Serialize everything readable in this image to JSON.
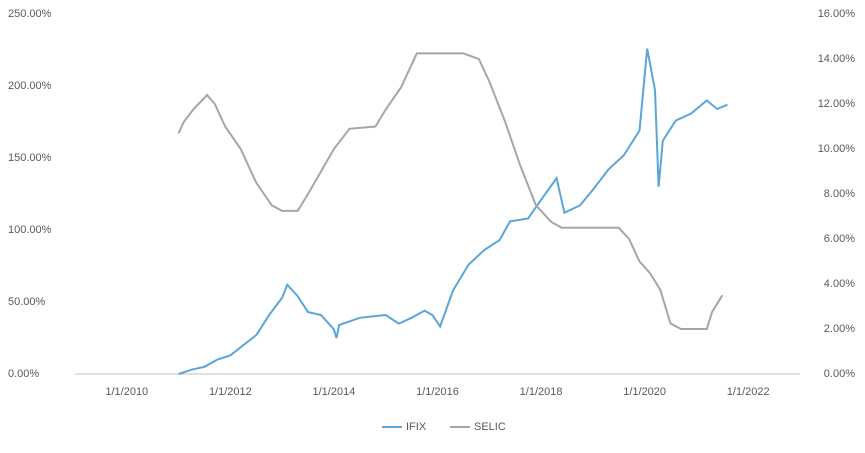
{
  "chart_data": {
    "type": "line",
    "xlim": [
      2009,
      2023
    ],
    "xticks": [
      {
        "value": 2010,
        "label": "1/1/2010"
      },
      {
        "value": 2012,
        "label": "1/1/2012"
      },
      {
        "value": 2014,
        "label": "1/1/2014"
      },
      {
        "value": 2016,
        "label": "1/1/2016"
      },
      {
        "value": 2018,
        "label": "1/1/2018"
      },
      {
        "value": 2020,
        "label": "1/1/2020"
      },
      {
        "value": 2022,
        "label": "1/1/2022"
      }
    ],
    "ylim": [
      0,
      250
    ],
    "yticks": [
      {
        "value": 0,
        "label": "0.00%"
      },
      {
        "value": 50,
        "label": "50.00%"
      },
      {
        "value": 100,
        "label": "100.00%"
      },
      {
        "value": 150,
        "label": "150.00%"
      },
      {
        "value": 200,
        "label": "200.00%"
      },
      {
        "value": 250,
        "label": "250.00%"
      }
    ],
    "y2lim": [
      0,
      16
    ],
    "y2ticks": [
      {
        "value": 0,
        "label": "0.00%"
      },
      {
        "value": 2,
        "label": "2.00%"
      },
      {
        "value": 4,
        "label": "4.00%"
      },
      {
        "value": 6,
        "label": "6.00%"
      },
      {
        "value": 8,
        "label": "8.00%"
      },
      {
        "value": 10,
        "label": "10.00%"
      },
      {
        "value": 12,
        "label": "12.00%"
      },
      {
        "value": 14,
        "label": "14.00%"
      },
      {
        "value": 16,
        "label": "16.00%"
      }
    ],
    "grid": false,
    "legend": "bottom",
    "series": [
      {
        "name": "IFIX",
        "color": "#5ba6d9",
        "x": [
          2011.0,
          2011.25,
          2011.5,
          2011.75,
          2012.0,
          2012.25,
          2012.5,
          2012.75,
          2013.0,
          2013.1,
          2013.3,
          2013.5,
          2013.75,
          2014.0,
          2014.05,
          2014.1,
          2014.5,
          2015.0,
          2015.25,
          2015.5,
          2015.75,
          2015.9,
          2016.05,
          2016.3,
          2016.6,
          2016.9,
          2017.2,
          2017.4,
          2017.75,
          2018.0,
          2018.3,
          2018.45,
          2018.75,
          2019.0,
          2019.3,
          2019.6,
          2019.9,
          2020.05,
          2020.2,
          2020.27,
          2020.35,
          2020.6,
          2020.9,
          2021.2,
          2021.4,
          2021.6
        ],
        "values": [
          0,
          3,
          5,
          10,
          13,
          20,
          27,
          41,
          53,
          62,
          54,
          43,
          41,
          31,
          25,
          34,
          39,
          41,
          35,
          39,
          44,
          41,
          33,
          58,
          76,
          86,
          93,
          106,
          108,
          121,
          136,
          112,
          117,
          128,
          142,
          152,
          169,
          226,
          197,
          130,
          162,
          176,
          181,
          190,
          184,
          187
        ]
      },
      {
        "name": "SELIC",
        "color": "#a6a6a6",
        "axis": "y2",
        "x": [
          2011.0,
          2011.1,
          2011.3,
          2011.55,
          2011.7,
          2011.9,
          2012.2,
          2012.5,
          2012.8,
          2013.0,
          2013.3,
          2013.5,
          2013.75,
          2014.0,
          2014.3,
          2014.8,
          2015.0,
          2015.3,
          2015.6,
          2016.5,
          2016.8,
          2017.0,
          2017.3,
          2017.6,
          2017.9,
          2018.2,
          2018.4,
          2019.5,
          2019.7,
          2019.9,
          2020.1,
          2020.3,
          2020.5,
          2020.7,
          2021.2,
          2021.3,
          2021.5
        ],
        "values": [
          10.7,
          11.2,
          11.8,
          12.4,
          12.0,
          11,
          10,
          8.5,
          7.5,
          7.25,
          7.25,
          8,
          9,
          10,
          10.9,
          11,
          11.75,
          12.75,
          14.25,
          14.25,
          14,
          13,
          11.25,
          9.25,
          7.5,
          6.75,
          6.5,
          6.5,
          6,
          5,
          4.5,
          3.75,
          2.25,
          2,
          2,
          2.75,
          3.5
        ]
      }
    ]
  }
}
